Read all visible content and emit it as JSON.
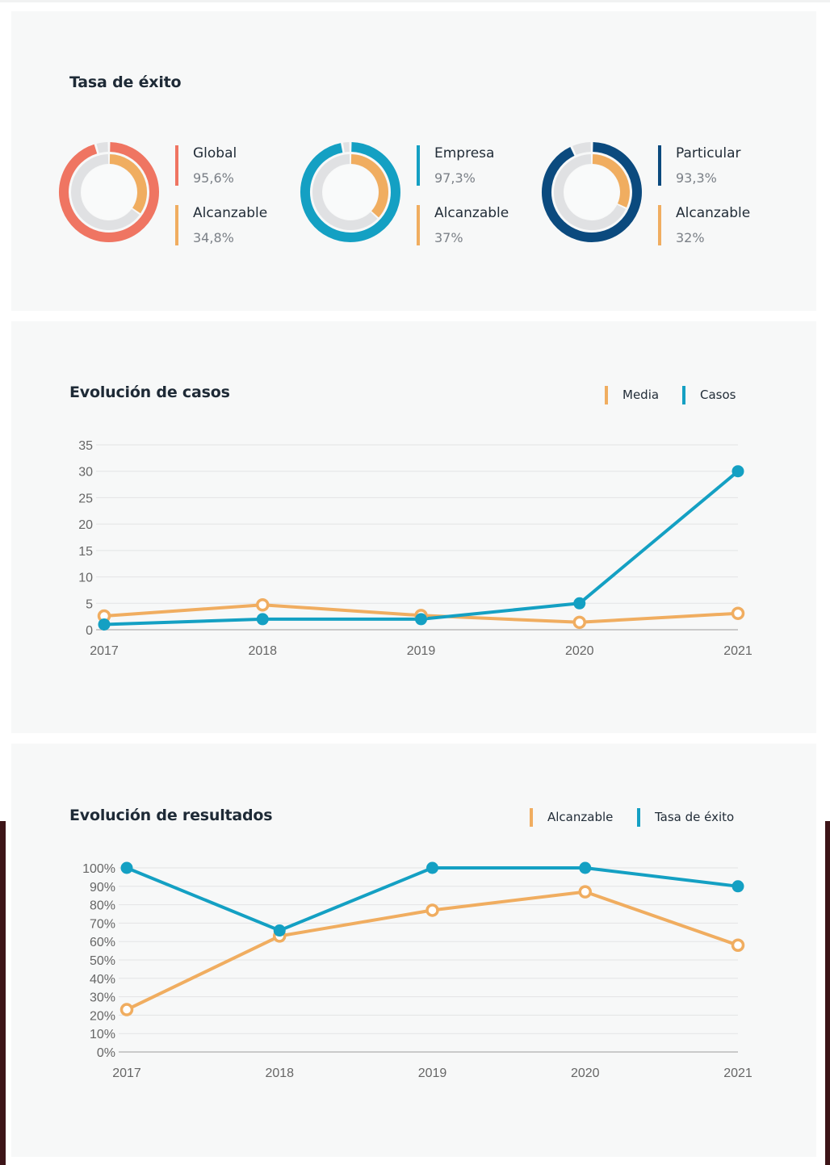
{
  "colors": {
    "global": "#ef7562",
    "empresa": "#14a0c3",
    "particular": "#0b4a7e",
    "alcanzable": "#f0ad60",
    "track": "#e0e1e3",
    "casos": "#14a0c3",
    "tasa": "#14a0c3",
    "media": "#f0ad60",
    "grid": "#e3e4e5",
    "axis": "#bbbbbb",
    "tick": "#666666"
  },
  "tasa_exito": {
    "title": "Tasa de éxito",
    "donuts": [
      {
        "label": "Global",
        "value_text": "95,6%",
        "value": 95.6,
        "color_key": "global",
        "alc_label": "Alcanzable",
        "alc_value_text": "34,8%",
        "alc_value": 34.8
      },
      {
        "label": "Empresa",
        "value_text": "97,3%",
        "value": 97.3,
        "color_key": "empresa",
        "alc_label": "Alcanzable",
        "alc_value_text": "37%",
        "alc_value": 37
      },
      {
        "label": "Particular",
        "value_text": "93,3%",
        "value": 93.3,
        "color_key": "particular",
        "alc_label": "Alcanzable",
        "alc_value_text": "32%",
        "alc_value": 32
      }
    ]
  },
  "chart_data": [
    {
      "type": "line",
      "title": "Evolución de casos",
      "categories": [
        "2017",
        "2018",
        "2019",
        "2020",
        "2021"
      ],
      "series": [
        {
          "name": "Media",
          "values": [
            2.6,
            4.7,
            2.7,
            1.4,
            3.1
          ],
          "color_key": "media",
          "marker": "hollow"
        },
        {
          "name": "Casos",
          "values": [
            1,
            2,
            2,
            5,
            30
          ],
          "color_key": "casos",
          "marker": "filled"
        }
      ],
      "ylim": [
        0,
        35
      ],
      "yticks": [
        0,
        5,
        10,
        15,
        20,
        25,
        30,
        35
      ],
      "ytick_labels": [
        "0",
        "5",
        "10",
        "15",
        "20",
        "25",
        "30",
        "35"
      ],
      "xlabel": "",
      "ylabel": "",
      "grid": true,
      "legend": "top-right"
    },
    {
      "type": "line",
      "title": "Evolución de resultados",
      "categories": [
        "2017",
        "2018",
        "2019",
        "2020",
        "2021"
      ],
      "series": [
        {
          "name": "Alcanzable",
          "values": [
            23,
            63,
            77,
            87,
            58
          ],
          "color_key": "alcanzable",
          "marker": "hollow"
        },
        {
          "name": "Tasa de éxito",
          "values": [
            100,
            66,
            100,
            100,
            90
          ],
          "color_key": "tasa",
          "marker": "filled"
        }
      ],
      "ylim": [
        0,
        100
      ],
      "yticks": [
        0,
        10,
        20,
        30,
        40,
        50,
        60,
        70,
        80,
        90,
        100
      ],
      "ytick_labels": [
        "0%",
        "10%",
        "20%",
        "30%",
        "40%",
        "50%",
        "60%",
        "70%",
        "80%",
        "90%",
        "100%"
      ],
      "xlabel": "",
      "ylabel": "",
      "grid": true,
      "legend": "top-right"
    }
  ]
}
